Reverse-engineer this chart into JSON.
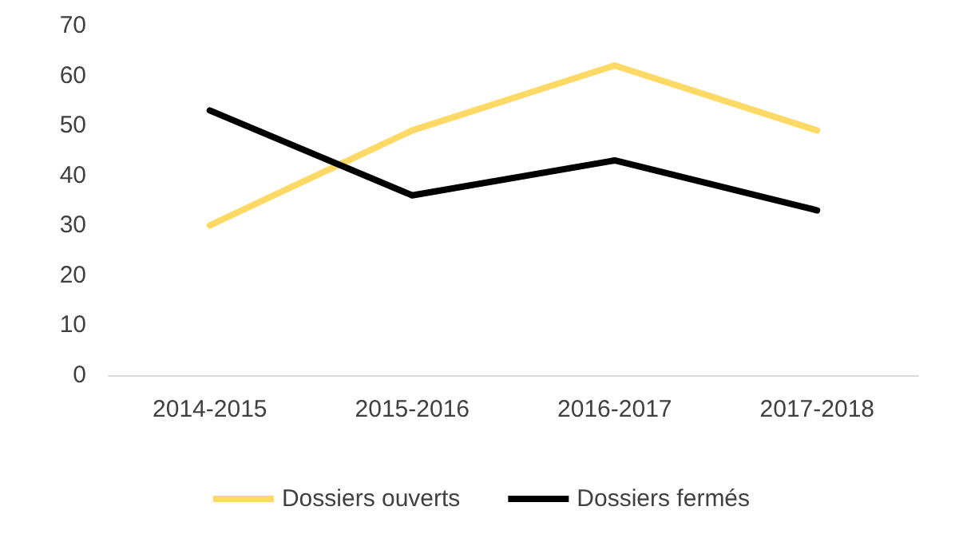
{
  "chart_data": {
    "type": "line",
    "categories": [
      "2014-2015",
      "2015-2016",
      "2016-2017",
      "2017-2018"
    ],
    "series": [
      {
        "name": "Dossiers ouverts",
        "color": "#ffd966",
        "values": [
          30,
          49,
          62,
          49
        ]
      },
      {
        "name": "Dossiers fermés",
        "color": "#000000",
        "values": [
          53,
          36,
          43,
          33
        ]
      }
    ],
    "ylim": [
      0,
      70
    ],
    "yticks": [
      0,
      10,
      20,
      30,
      40,
      50,
      60,
      70
    ],
    "grid": false,
    "legend": "bottom",
    "marker": "none",
    "line_style": "solid"
  }
}
